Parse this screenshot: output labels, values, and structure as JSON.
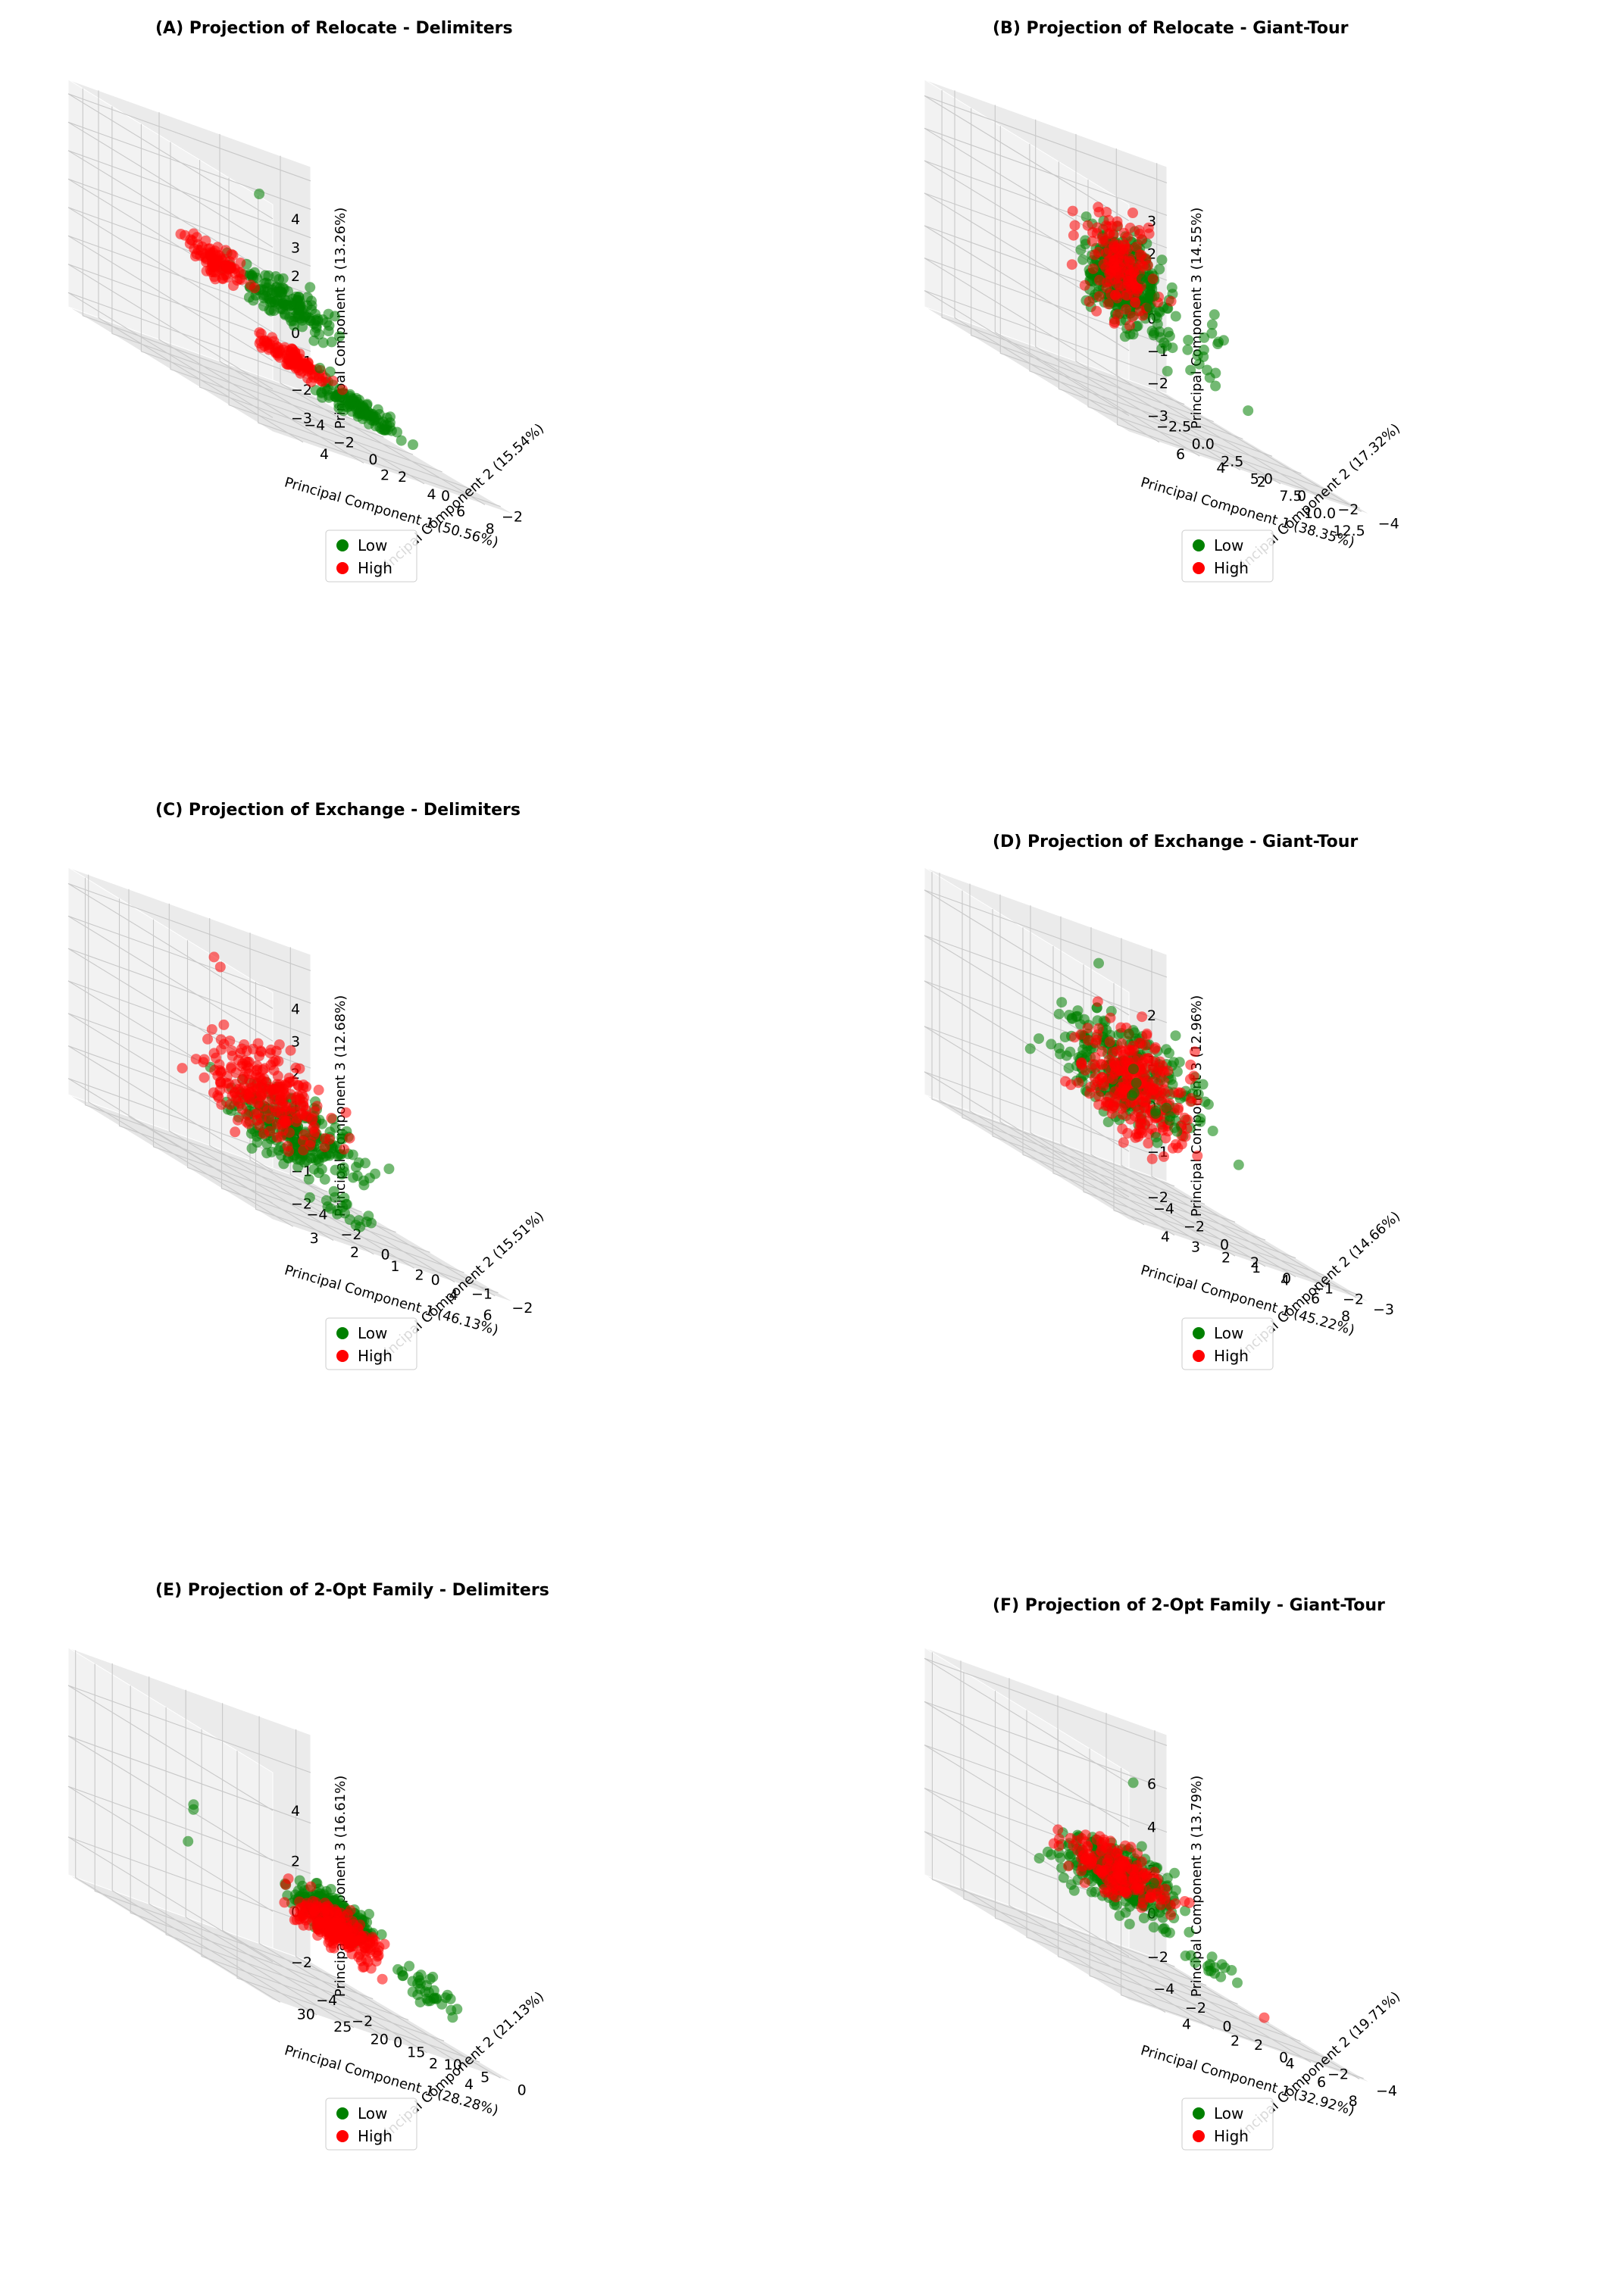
{
  "colors": {
    "low": "#008000",
    "high": "#ff0000",
    "pane_left": "#ebebeb",
    "pane_right": "#f2f2f2",
    "pane_floor": "#e6e6e6",
    "grid": "#c8c8c8"
  },
  "legend": {
    "low_label": "Low",
    "high_label": "High",
    "placement": "bottom-center"
  },
  "chart_data": [
    {
      "type": "scatter3d",
      "title": "(A) Projection of Relocate - Delimiters",
      "xlabel": "Principal Component 1 (50.56%)",
      "ylabel": "Principal Component 2 (15.54%)",
      "zlabel": "Principal Component 3 (13.26%)",
      "xlim": [
        -5,
        9
      ],
      "ylim": [
        -3,
        5
      ],
      "zlim": [
        -3.5,
        4.5
      ],
      "xticks": [
        "−4",
        "−2",
        "0",
        "2",
        "4",
        "6",
        "8"
      ],
      "yticks": [
        "−2",
        "0",
        "2",
        "4"
      ],
      "zticks": [
        "−3",
        "−2",
        "−1",
        "0",
        "1",
        "2",
        "3",
        "4"
      ],
      "series": [
        {
          "name": "Low"
        },
        {
          "name": "High"
        }
      ],
      "clusters": [
        {
          "cls": "low",
          "n": 130,
          "x": [
            -1,
            8
          ],
          "y": [
            1.5,
            2.5
          ],
          "z": [
            -0.5,
            1.5
          ]
        },
        {
          "cls": "high",
          "n": 90,
          "x": [
            -4,
            2
          ],
          "y": [
            1.5,
            2.5
          ],
          "z": [
            -0.3,
            1.3
          ]
        },
        {
          "cls": "low",
          "n": 110,
          "x": [
            0,
            8
          ],
          "y": [
            -0.8,
            0.2
          ],
          "z": [
            -2.8,
            -1.8
          ]
        },
        {
          "cls": "high",
          "n": 100,
          "x": [
            -4,
            3
          ],
          "y": [
            -0.8,
            0.2
          ],
          "z": [
            -2.5,
            -1.5
          ]
        },
        {
          "cls": "low",
          "n": 12,
          "x": [
            3,
            9
          ],
          "y": [
            0,
            4
          ],
          "z": [
            -1.5,
            2
          ]
        }
      ],
      "outliers": [
        {
          "cls": "low",
          "x": 6,
          "y": 4,
          "z": 4.3
        }
      ]
    },
    {
      "type": "scatter3d",
      "title": "(B) Projection of Relocate - Giant-Tour",
      "xlabel": "Principal Component 1 (38.35%)",
      "ylabel": "Principal Component 2 (17.32%)",
      "zlabel": "Principal Component 3 (14.55%)",
      "xlim": [
        -4,
        13.5
      ],
      "ylim": [
        -4.5,
        7.5
      ],
      "zlim": [
        -3.5,
        3.5
      ],
      "xticks": [
        "−2.5",
        "0.0",
        "2.5",
        "5.0",
        "7.5",
        "10.0",
        "12.5"
      ],
      "yticks": [
        "−4",
        "−2",
        "0",
        "2",
        "4",
        "6"
      ],
      "zticks": [
        "−3",
        "−2",
        "−1",
        "0",
        "1",
        "2",
        "3"
      ],
      "series": [
        {
          "name": "Low"
        },
        {
          "name": "High"
        }
      ],
      "clusters": [
        {
          "cls": "low",
          "n": 330,
          "x": [
            -3,
            5
          ],
          "y": [
            -1,
            2
          ],
          "z": [
            -2,
            2
          ]
        },
        {
          "cls": "high",
          "n": 150,
          "x": [
            -3,
            4
          ],
          "y": [
            -1,
            2
          ],
          "z": [
            -2,
            2.5
          ]
        },
        {
          "cls": "low",
          "n": 30,
          "x": [
            2,
            8
          ],
          "y": [
            -3,
            2
          ],
          "z": [
            -3,
            1
          ]
        }
      ],
      "outliers": [
        {
          "cls": "low",
          "x": 12,
          "y": 5,
          "z": 2
        },
        {
          "cls": "low",
          "x": 12,
          "y": 6,
          "z": 1.2
        },
        {
          "cls": "low",
          "x": 10,
          "y": 2,
          "z": -1
        },
        {
          "cls": "low",
          "x": 13,
          "y": 7,
          "z": -0.5
        },
        {
          "cls": "low",
          "x": 9,
          "y": -1,
          "z": -2
        }
      ]
    },
    {
      "type": "scatter3d",
      "title": "(C) Projection of Exchange - Delimiters",
      "xlabel": "Principal Component 1 (46.13%)",
      "ylabel": "Principal Component 2 (15.51%)",
      "zlabel": "Principal Component 3 (12.68%)",
      "xlim": [
        -5,
        7
      ],
      "ylim": [
        -2.5,
        3.5
      ],
      "zlim": [
        -2.5,
        4.5
      ],
      "xticks": [
        "−4",
        "−2",
        "0",
        "2",
        "4",
        "6"
      ],
      "yticks": [
        "−2",
        "−1",
        "0",
        "1",
        "2",
        "3"
      ],
      "zticks": [
        "−2",
        "−1",
        "0",
        "1",
        "2",
        "3",
        "4"
      ],
      "series": [
        {
          "name": "Low"
        },
        {
          "name": "High"
        }
      ],
      "clusters": [
        {
          "cls": "low",
          "n": 260,
          "x": [
            -4,
            4
          ],
          "y": [
            -2,
            2
          ],
          "z": [
            -2,
            1
          ]
        },
        {
          "cls": "high",
          "n": 230,
          "x": [
            -3,
            4
          ],
          "y": [
            -1,
            3
          ],
          "z": [
            -1.5,
            2.5
          ]
        },
        {
          "cls": "low",
          "n": 20,
          "x": [
            4,
            6.5
          ],
          "y": [
            0,
            2
          ],
          "z": [
            -2.5,
            -1
          ]
        }
      ],
      "outliers": [
        {
          "cls": "high",
          "x": -2,
          "y": 1,
          "z": 3.5
        },
        {
          "cls": "high",
          "x": 0,
          "y": 2,
          "z": 4
        }
      ]
    },
    {
      "type": "scatter3d",
      "title": "(D) Projection of Exchange - Giant-Tour",
      "xlabel": "Principal Component 1 (45.22%)",
      "ylabel": "Principal Component 2 (14.66%)",
      "zlabel": "Principal Component 3 (12.96%)",
      "xlim": [
        -4.5,
        9
      ],
      "ylim": [
        -3.5,
        4.5
      ],
      "zlim": [
        -2.5,
        2.5
      ],
      "xticks": [
        "−4",
        "−2",
        "0",
        "2",
        "4",
        "6",
        "8"
      ],
      "yticks": [
        "−3",
        "−2",
        "−1",
        "0",
        "1",
        "2",
        "3",
        "4"
      ],
      "zticks": [
        "−2",
        "−1",
        "0",
        "1",
        "2"
      ],
      "series": [
        {
          "name": "Low"
        },
        {
          "name": "High"
        }
      ],
      "clusters": [
        {
          "cls": "low",
          "n": 290,
          "x": [
            -3,
            5
          ],
          "y": [
            -2,
            3
          ],
          "z": [
            -1.5,
            1.5
          ]
        },
        {
          "cls": "high",
          "n": 250,
          "x": [
            -3,
            4
          ],
          "y": [
            -2,
            2
          ],
          "z": [
            -2,
            1.5
          ]
        },
        {
          "cls": "low",
          "n": 15,
          "x": [
            5,
            8.5
          ],
          "y": [
            0,
            4
          ],
          "z": [
            -1,
            1
          ]
        }
      ],
      "outliers": [
        {
          "cls": "low",
          "x": 8,
          "y": 4,
          "z": 1.5
        },
        {
          "cls": "low",
          "x": 2,
          "y": 2,
          "z": 2.3
        }
      ]
    },
    {
      "type": "scatter3d",
      "title": "(E) Projection of 2-Opt Family - Delimiters",
      "xlabel": "Principal Component 1 (28.28%)",
      "ylabel": "Principal Component 2 (21.13%)",
      "zlabel": "Principal Component 3 (16.61%)",
      "xlim": [
        -5.5,
        6
      ],
      "ylim": [
        -2,
        31
      ],
      "zlim": [
        -3.5,
        5.5
      ],
      "xticks": [
        "−4",
        "−2",
        "0",
        "2",
        "4"
      ],
      "yticks": [
        "0",
        "5",
        "10",
        "15",
        "20",
        "25",
        "30"
      ],
      "zticks": [
        "−2",
        "0",
        "2",
        "4"
      ],
      "series": [
        {
          "name": "Low"
        },
        {
          "name": "High"
        }
      ],
      "clusters": [
        {
          "cls": "low",
          "n": 300,
          "x": [
            -3.5,
            2
          ],
          "y": [
            3,
            10
          ],
          "z": [
            -1.5,
            0.5
          ]
        },
        {
          "cls": "high",
          "n": 230,
          "x": [
            -5,
            1
          ],
          "y": [
            0,
            6
          ],
          "z": [
            -2.5,
            0
          ]
        },
        {
          "cls": "low",
          "n": 35,
          "x": [
            1,
            5
          ],
          "y": [
            0,
            6
          ],
          "z": [
            -2.5,
            -0.5
          ]
        }
      ],
      "outliers": [
        {
          "cls": "low",
          "x": -3,
          "y": 20,
          "z": 1.5
        },
        {
          "cls": "low",
          "x": -3,
          "y": 20,
          "z": 1.3
        },
        {
          "cls": "low",
          "x": 0,
          "y": 28,
          "z": 0.5
        }
      ]
    },
    {
      "type": "scatter3d",
      "title": "(F) Projection of 2-Opt Family - Giant-Tour",
      "xlabel": "Principal Component 1 (32.92%)",
      "ylabel": "Principal Component 2 (19.71%)",
      "zlabel": "Principal Component 3 (13.79%)",
      "xlim": [
        -4.5,
        8.5
      ],
      "ylim": [
        -4.5,
        5.5
      ],
      "zlim": [
        -4,
        6.5
      ],
      "xticks": [
        "−4",
        "−2",
        "0",
        "2",
        "4",
        "6",
        "8"
      ],
      "yticks": [
        "−4",
        "−2",
        "0",
        "2",
        "4"
      ],
      "zticks": [
        "−2",
        "0",
        "2",
        "4",
        "6"
      ],
      "series": [
        {
          "name": "Low"
        },
        {
          "name": "High"
        }
      ],
      "clusters": [
        {
          "cls": "low",
          "n": 330,
          "x": [
            -3,
            4
          ],
          "y": [
            -2,
            3
          ],
          "z": [
            -2,
            2
          ]
        },
        {
          "cls": "high",
          "n": 170,
          "x": [
            -3,
            4
          ],
          "y": [
            -1.5,
            3
          ],
          "z": [
            -1.5,
            2
          ]
        },
        {
          "cls": "low",
          "n": 15,
          "x": [
            3,
            6
          ],
          "y": [
            -2,
            1
          ],
          "z": [
            -3,
            -1
          ]
        }
      ],
      "outliers": [
        {
          "cls": "low",
          "x": 8,
          "y": 5,
          "z": 6
        },
        {
          "cls": "low",
          "x": 7,
          "y": 4,
          "z": 3
        },
        {
          "cls": "low",
          "x": 7,
          "y": 3.5,
          "z": 1.5
        },
        {
          "cls": "high",
          "x": 4,
          "y": -3,
          "z": -3.5
        }
      ]
    }
  ]
}
